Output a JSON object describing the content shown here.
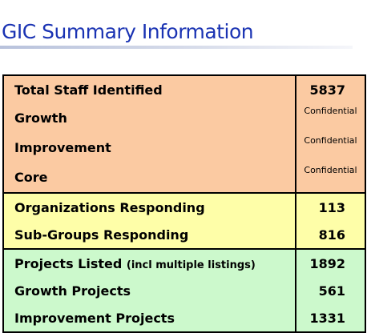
{
  "title": "GIC Summary Information",
  "rows": [
    {
      "label": "Total Staff Identified",
      "value": "5837"
    },
    {
      "label": "Growth",
      "value": "Confidential"
    },
    {
      "label": "Improvement",
      "value": "Confidential"
    },
    {
      "label": "Core",
      "value": "Confidential"
    },
    {
      "label": "Organizations Responding",
      "value": "113"
    },
    {
      "label": "Sub-Groups Responding",
      "value": "816"
    },
    {
      "label": "Projects Listed",
      "label_note": "(incl multiple listings)",
      "value": "1892"
    },
    {
      "label": "Growth Projects",
      "value": "561"
    },
    {
      "label": "Improvement Projects",
      "value": "1331"
    }
  ],
  "colors": {
    "staff_group": "#fbcaa2",
    "response_group": "#fefea8",
    "project_group": "#ccf9cc",
    "title": "#1a33b3"
  }
}
